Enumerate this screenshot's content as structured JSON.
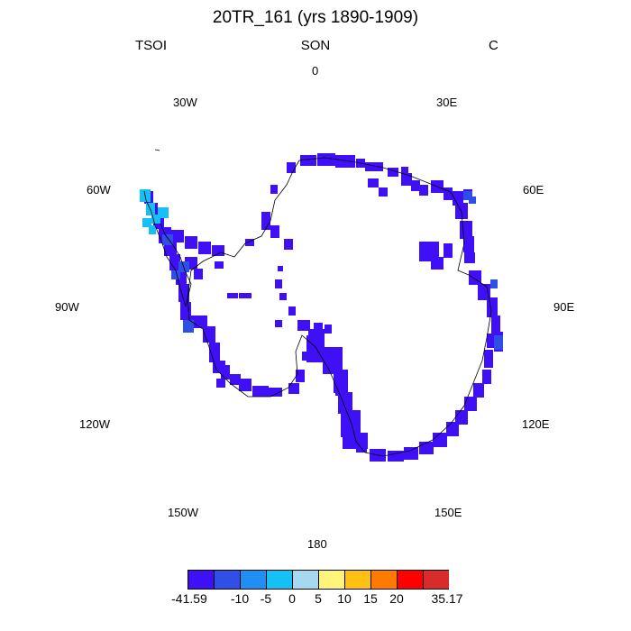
{
  "title": "20TR_161 (yrs 1890-1909)",
  "header": {
    "left": "TSOI",
    "center": "SON",
    "right": "C"
  },
  "longitude_labels": {
    "0": "0",
    "30E": "30E",
    "60E": "60E",
    "90E": "90E",
    "120E": "120E",
    "150E": "150E",
    "180": "180",
    "150W": "150W",
    "120W": "120W",
    "90W": "90W",
    "60W": "60W",
    "30W": "30W"
  },
  "colorbar": {
    "colors": [
      "#3f10f5",
      "#2f4fe6",
      "#1f8ef5",
      "#16c0f5",
      "#a6d8f0",
      "#fff57a",
      "#ffc014",
      "#ff7a00",
      "#ff0000",
      "#d92b2b"
    ],
    "labels": [
      "-41.59",
      "-10",
      "-5",
      "0",
      "5",
      "10",
      "15",
      "20",
      "35.17"
    ]
  },
  "field_colors": {
    "dominant": "#3f10f5",
    "secondary": "#2f4fe6",
    "peninsula": "#16c0f5",
    "coastline": "#000000"
  }
}
